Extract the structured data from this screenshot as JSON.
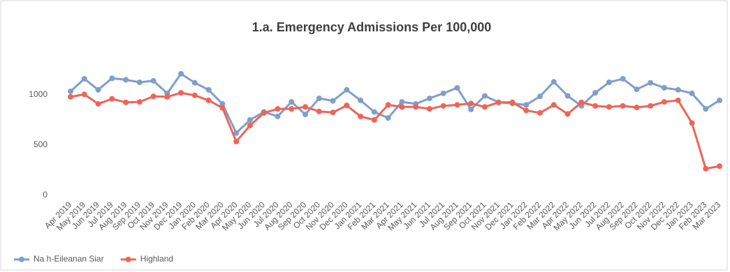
{
  "chart_data": {
    "type": "line",
    "title": "1.a. Emergency Admissions Per 100,000",
    "categories": [
      "Apr 2019",
      "May 2019",
      "Jun 2019",
      "Jul 2019",
      "Aug 2019",
      "Sep 2019",
      "Oct 2019",
      "Nov 2019",
      "Dec 2019",
      "Jan 2020",
      "Feb 2020",
      "Mar 2020",
      "Apr 2020",
      "May 2020",
      "Jun 2020",
      "Jul 2020",
      "Aug 2020",
      "Sep 2020",
      "Oct 2020",
      "Nov 2020",
      "Dec 2020",
      "Jan 2021",
      "Feb 2021",
      "Mar 2021",
      "Apr 2021",
      "May 2021",
      "Jun 2021",
      "Jul 2021",
      "Aug 2021",
      "Sep 2021",
      "Oct 2021",
      "Nov 2021",
      "Dec 2021",
      "Jan 2022",
      "Feb 2022",
      "Mar 2022",
      "Apr 2022",
      "May 2022",
      "Jun 2022",
      "Jul 2022",
      "Aug 2022",
      "Sep 2022",
      "Oct 2022",
      "Nov 2022",
      "Dec 2022",
      "Jan 2023",
      "Feb 2023",
      "Mar 2023"
    ],
    "series": [
      {
        "name": "Na h-Eileanan Siar",
        "color": "#7f9fcb",
        "values": [
          1035,
          1160,
          1050,
          1165,
          1150,
          1125,
          1140,
          1015,
          1210,
          1120,
          1050,
          910,
          620,
          750,
          830,
          785,
          930,
          805,
          965,
          940,
          1050,
          945,
          830,
          770,
          930,
          910,
          965,
          1015,
          1070,
          855,
          990,
          925,
          915,
          900,
          985,
          1130,
          990,
          890,
          1020,
          1125,
          1160,
          1055,
          1120,
          1070,
          1050,
          1015,
          860,
          945
        ]
      },
      {
        "name": "Highland",
        "color": "#ef6457",
        "values": [
          980,
          1005,
          910,
          960,
          925,
          930,
          985,
          980,
          1020,
          995,
          945,
          870,
          535,
          695,
          820,
          860,
          860,
          880,
          835,
          825,
          895,
          785,
          750,
          900,
          880,
          880,
          860,
          890,
          900,
          915,
          880,
          925,
          925,
          845,
          820,
          900,
          810,
          925,
          890,
          880,
          890,
          875,
          890,
          930,
          945,
          720,
          265,
          290
        ]
      }
    ],
    "ylim": [
      0,
      1500
    ],
    "yticks": [
      0,
      500,
      1000
    ],
    "grid": false,
    "legend": "bottom-left"
  }
}
